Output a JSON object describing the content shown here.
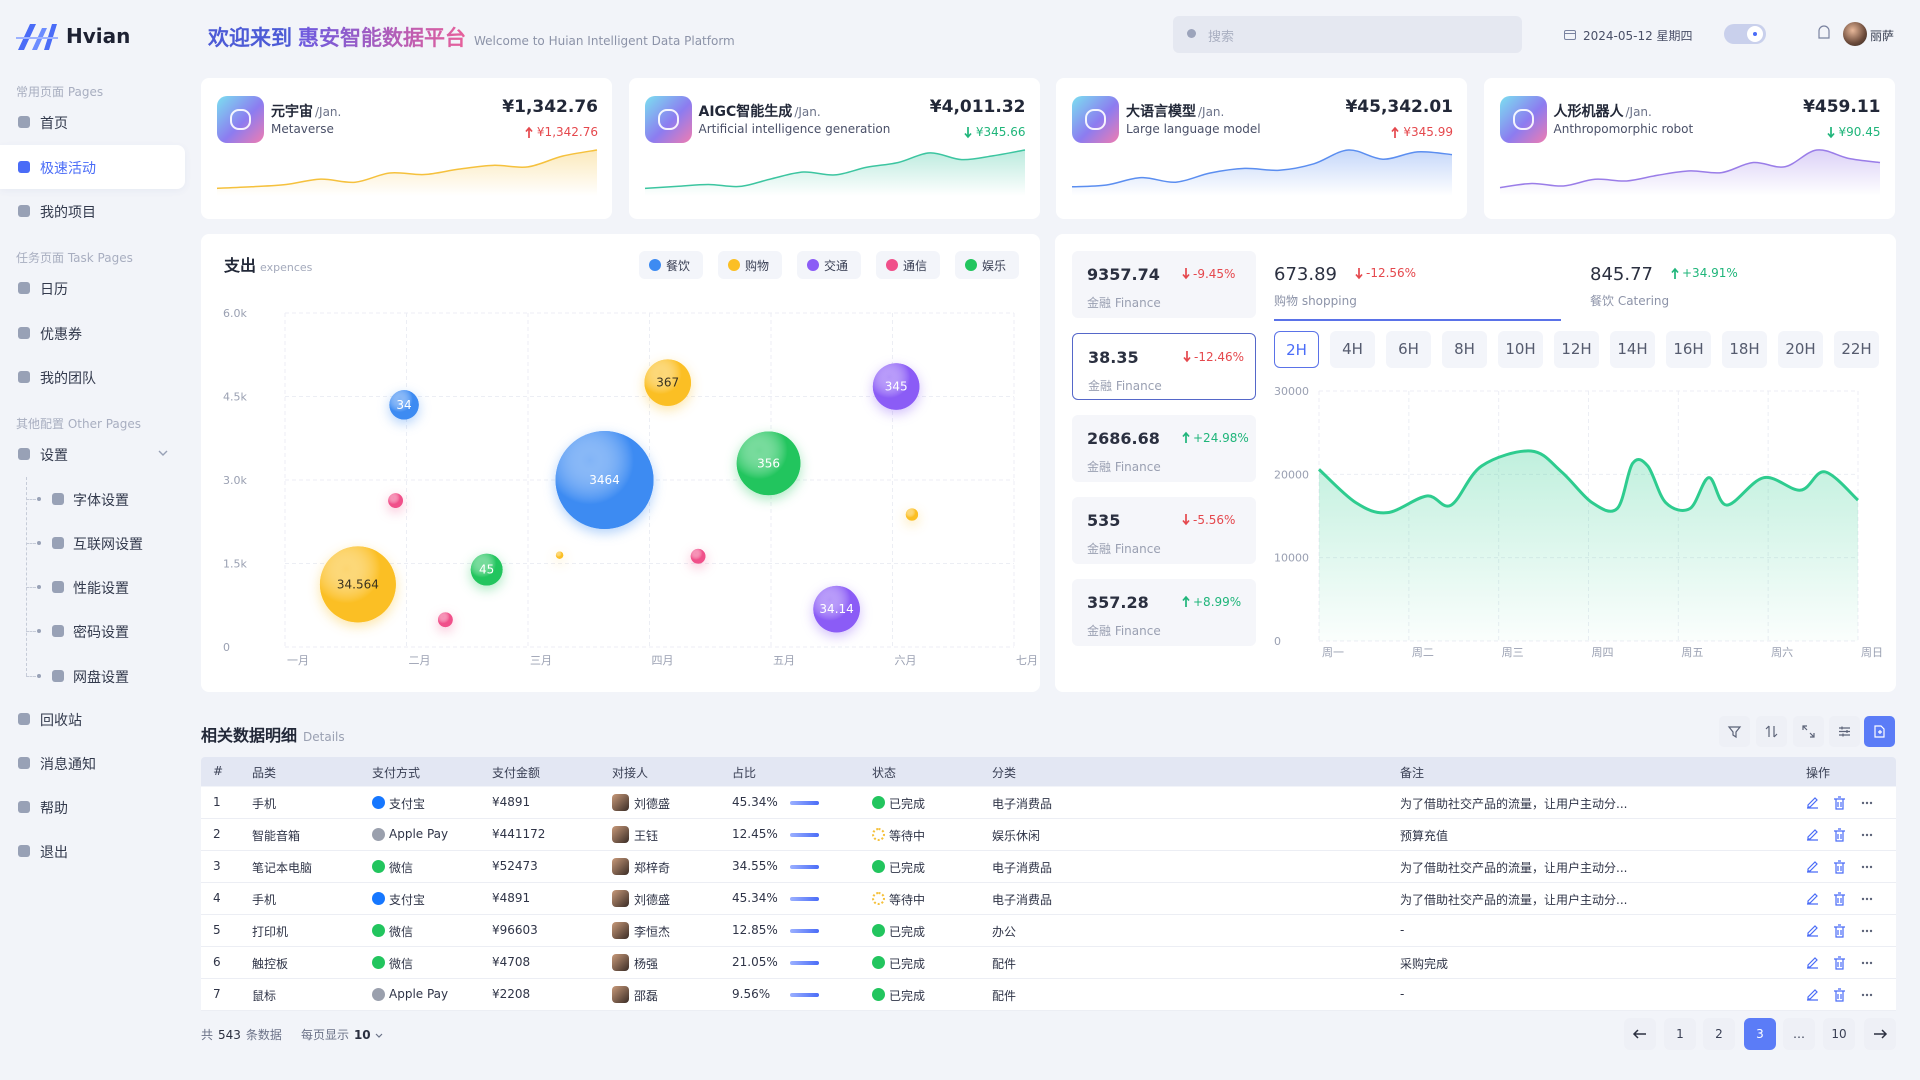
{
  "sidebar": {
    "logo": "Hvian",
    "active": [
      0,
      1
    ],
    "groups": [
      {
        "label": "常用页面 Pages",
        "items": [
          "首页",
          "极速活动",
          "我的项目"
        ]
      },
      {
        "label": "任务页面 Task Pages",
        "items": [
          "日历",
          "优惠券",
          "我的团队"
        ]
      },
      {
        "label": "其他配置 Other Pages",
        "items": [
          "设置"
        ],
        "subitems": [
          "字体设置",
          "互联网设置",
          "性能设置",
          "密码设置",
          "网盘设置"
        ]
      }
    ],
    "bottom_items": [
      "回收站",
      "消息通知",
      "帮助",
      "退出"
    ]
  },
  "header": {
    "welcome": "欢迎来到",
    "platform": "惠安智能数据平台",
    "subtitle": "Welcome to Huian Intelligent Data Platform",
    "search_placeholder": "搜索",
    "date": "2024-05-12 星期四",
    "user": "丽萨"
  },
  "cards": [
    {
      "title": "元宇宙",
      "period": "/Jan.",
      "subtitle": "Metaverse",
      "amount": "¥1,342.76",
      "change": "¥1,342.76",
      "trend": "up",
      "trend_color": "#e5484d",
      "color": "#f5c13d",
      "spark": [
        10,
        12,
        15,
        22,
        18,
        30,
        28,
        35,
        40,
        38,
        52,
        60
      ]
    },
    {
      "title": "AIGC智能生成",
      "period": "/Jan.",
      "subtitle": "Artificial intelligence generation",
      "amount": "¥4,011.32",
      "change": "¥345.66",
      "trend": "down",
      "trend_color": "#1fb57a",
      "color": "#3cc5a0",
      "spark": [
        8,
        10,
        12,
        10,
        18,
        25,
        22,
        30,
        35,
        45,
        38,
        42,
        48
      ]
    },
    {
      "title": "大语言模型",
      "period": "/Jan.",
      "subtitle": "Large language model",
      "amount": "¥45,342.01",
      "change": "¥345.99",
      "trend": "up",
      "trend_color": "#e5484d",
      "color": "#5b8ef0",
      "spark": [
        10,
        12,
        20,
        15,
        25,
        30,
        28,
        35,
        50,
        40,
        48,
        45
      ]
    },
    {
      "title": "人形机器人",
      "period": "/Jan.",
      "subtitle": "Anthropomorphic robot",
      "amount": "¥459.11",
      "change": "¥90.45",
      "trend": "down",
      "trend_color": "#1fb57a",
      "color": "#9a7de8",
      "spark": [
        10,
        15,
        12,
        20,
        18,
        25,
        30,
        28,
        40,
        35,
        55,
        45,
        40
      ]
    }
  ],
  "chart_data": [
    {
      "type": "bubble",
      "title": "支出",
      "subtitle": "expences",
      "categories": [
        "一月",
        "二月",
        "三月",
        "四月",
        "五月",
        "六月",
        "七月"
      ],
      "xlim": [
        0,
        6
      ],
      "ylim": [
        0,
        6000
      ],
      "yticks": [
        0,
        {
          "value": 1500,
          "label": "1.5k"
        },
        {
          "value": 3000,
          "label": "3.0k"
        },
        {
          "value": 4500,
          "label": "4.5k"
        },
        {
          "value": 6000,
          "label": "6.0k"
        }
      ],
      "grid": true,
      "series": [
        {
          "name": "餐饮",
          "color": "#3d8bf2",
          "x": [
            2.63,
            0.98
          ],
          "values": [
            3000,
            4350
          ],
          "sizes": [
            40,
            12
          ],
          "labels": [
            "3464",
            "34"
          ]
        },
        {
          "name": "购物",
          "color": "#fbbf24",
          "x": [
            3.15,
            0.6,
            5.16,
            2.26
          ],
          "values": [
            4750,
            1125,
            2380,
            1650
          ],
          "sizes": [
            19,
            31,
            5,
            3
          ],
          "labels": [
            "367",
            "34.564",
            null,
            null
          ]
        },
        {
          "name": "交通",
          "color": "#8b5cf6",
          "x": [
            5.03,
            4.54
          ],
          "values": [
            4680,
            680
          ],
          "sizes": [
            19,
            19
          ],
          "labels": [
            "345",
            "34.14"
          ]
        },
        {
          "name": "通信",
          "color": "#f0508a",
          "x": [
            0.91,
            3.4,
            1.32
          ],
          "values": [
            2630,
            1630,
            490
          ],
          "sizes": [
            6,
            6,
            6
          ],
          "labels": [
            null,
            null,
            null
          ]
        },
        {
          "name": "娱乐",
          "color": "#22c55e",
          "x": [
            3.98,
            1.66
          ],
          "values": [
            3300,
            1390
          ],
          "sizes": [
            26,
            13
          ],
          "labels": [
            "356",
            "45"
          ]
        }
      ]
    },
    {
      "type": "line",
      "categories": [
        "周一",
        "周二",
        "周三",
        "周四",
        "周五",
        "周六",
        "周日"
      ],
      "xlim": [
        0,
        6
      ],
      "ylim": [
        0,
        30000
      ],
      "yticks": [
        0,
        10000,
        20000,
        30000
      ],
      "grid": true,
      "color": "#2ecc8f",
      "x": [
        0,
        0.41,
        0.76,
        1.2,
        1.47,
        1.81,
        2.36,
        2.7,
        3.04,
        3.32,
        3.49,
        3.66,
        3.86,
        4.13,
        4.34,
        4.54,
        4.95,
        5.36,
        5.63,
        6
      ],
      "values": [
        20600,
        16600,
        15400,
        17400,
        16300,
        21000,
        22800,
        20300,
        16600,
        15900,
        21300,
        21000,
        16600,
        15900,
        19600,
        16300,
        19600,
        18100,
        20300,
        16900
      ]
    }
  ],
  "stats": {
    "selected": 1,
    "items": [
      {
        "value": 9357.74,
        "change": "-9.45%",
        "label": "金融 Finance",
        "trend": "down",
        "color": "#e5484d"
      },
      {
        "value": 38.35,
        "change": "-12.46%",
        "label": "金融 Finance",
        "trend": "down",
        "color": "#e5484d"
      },
      {
        "value": 2686.68,
        "change": "+24.98%",
        "label": "金融 Finance",
        "trend": "up",
        "color": "#1fb57a"
      },
      {
        "value": 535,
        "change": "-5.56%",
        "label": "金融 Finance",
        "trend": "down",
        "color": "#e5484d"
      },
      {
        "value": 357.28,
        "change": "+8.99%",
        "label": "金融 Finance",
        "trend": "up",
        "color": "#1fb57a"
      }
    ]
  },
  "tabs": {
    "active": 0,
    "items": [
      {
        "value": 673.89,
        "change": "-12.56%",
        "label": "购物 shopping",
        "trend": "down",
        "color": "#e5484d"
      },
      {
        "value": 845.77,
        "change": "+34.91%",
        "label": "餐饮 Catering",
        "trend": "up",
        "color": "#1fb57a"
      }
    ]
  },
  "time_ranges": {
    "active": 0,
    "items": [
      "2H",
      "4H",
      "6H",
      "8H",
      "10H",
      "12H",
      "14H",
      "16H",
      "18H",
      "20H",
      "22H"
    ]
  },
  "table": {
    "title": "相关数据明细",
    "subtitle": "Details",
    "columns": [
      "#",
      "品类",
      "支付方式",
      "支付金额",
      "对接人",
      "占比",
      "状态",
      "分类",
      "备注",
      "操作"
    ],
    "rows": [
      [
        1,
        "手机",
        "支付宝",
        "¥4891",
        "刘德盛",
        "45.34%",
        "已完成",
        "电子消费品",
        "为了借助社交产品的流量，让用户主动分..."
      ],
      [
        2,
        "智能音箱",
        "Apple Pay",
        "¥441172",
        "王钰",
        "12.45%",
        "等待中",
        "娱乐休闲",
        "预算充值"
      ],
      [
        3,
        "笔记本电脑",
        "微信",
        "¥52473",
        "郑梓奇",
        "34.55%",
        "已完成",
        "电子消费品",
        "为了借助社交产品的流量，让用户主动分..."
      ],
      [
        4,
        "手机",
        "支付宝",
        "¥4891",
        "刘德盛",
        "45.34%",
        "等待中",
        "电子消费品",
        "为了借助社交产品的流量，让用户主动分..."
      ],
      [
        5,
        "打印机",
        "微信",
        "¥96603",
        "李恒杰",
        "12.85%",
        "已完成",
        "办公",
        "-"
      ],
      [
        6,
        "触控板",
        "微信",
        "¥4708",
        "杨强",
        "21.05%",
        "已完成",
        "配件",
        "采购完成"
      ],
      [
        7,
        "鼠标",
        "Apple Pay",
        "¥2208",
        "邵磊",
        "9.56%",
        "已完成",
        "配件",
        "-"
      ]
    ],
    "pay_colors": [
      "#1677ff",
      "#9aa0ad",
      "#22c55e",
      "#1677ff",
      "#22c55e",
      "#22c55e",
      "#9aa0ad"
    ],
    "status_colors": [
      "#22c55e",
      "#f5c13d",
      "#22c55e",
      "#f5c13d",
      "#22c55e",
      "#22c55e",
      "#22c55e"
    ]
  },
  "footer": {
    "total_prefix": "共",
    "total": 543,
    "total_suffix": "条数据",
    "page_size_label": "每页显示",
    "page_size": 10
  },
  "pagination": {
    "pages": [
      1,
      2,
      3,
      "…",
      10
    ],
    "current": 2
  }
}
